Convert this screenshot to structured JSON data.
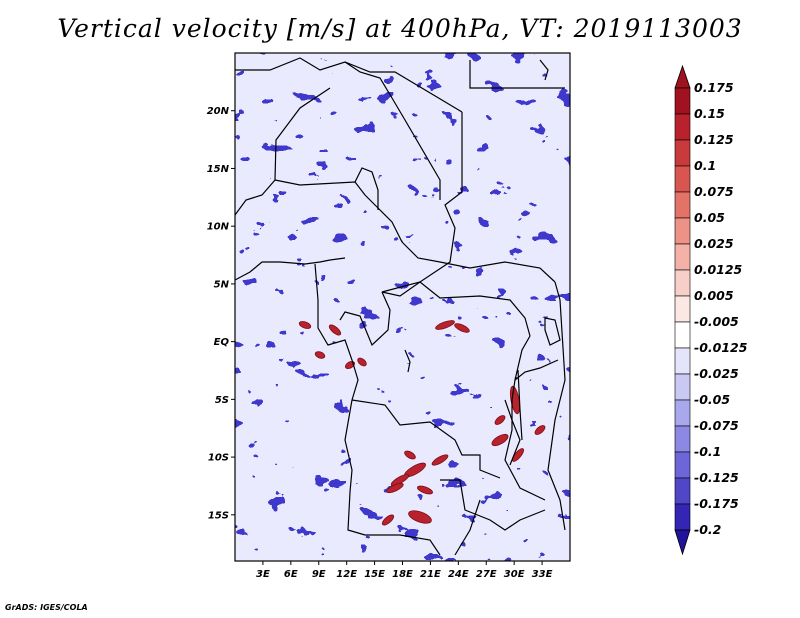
{
  "title": "Vertical velocity [m/s] at 400hPa, VT: 2019113003",
  "credit": "GrADS: IGES/COLA",
  "map": {
    "lon_range": [
      0,
      36
    ],
    "lat_range": [
      -19,
      25
    ],
    "lat_labels": [
      {
        "value": 20,
        "text": "20N"
      },
      {
        "value": 15,
        "text": "15N"
      },
      {
        "value": 10,
        "text": "10N"
      },
      {
        "value": 5,
        "text": "5N"
      },
      {
        "value": 0,
        "text": "EQ"
      },
      {
        "value": -5,
        "text": "5S"
      },
      {
        "value": -10,
        "text": "10S"
      },
      {
        "value": -15,
        "text": "15S"
      }
    ],
    "lon_labels": [
      {
        "value": 3,
        "text": "3E"
      },
      {
        "value": 6,
        "text": "6E"
      },
      {
        "value": 9,
        "text": "9E"
      },
      {
        "value": 12,
        "text": "12E"
      },
      {
        "value": 15,
        "text": "15E"
      },
      {
        "value": 18,
        "text": "18E"
      },
      {
        "value": 21,
        "text": "21E"
      },
      {
        "value": 24,
        "text": "24E"
      },
      {
        "value": 27,
        "text": "27E"
      },
      {
        "value": 30,
        "text": "30E"
      },
      {
        "value": 33,
        "text": "33E"
      }
    ]
  },
  "colorbar": {
    "levels": [
      {
        "label": "0.175",
        "color": "#a11220"
      },
      {
        "label": "0.15",
        "color": "#b8222c"
      },
      {
        "label": "0.125",
        "color": "#c93a3c"
      },
      {
        "label": "0.1",
        "color": "#d95550"
      },
      {
        "label": "0.075",
        "color": "#e37367"
      },
      {
        "label": "0.05",
        "color": "#ec9286"
      },
      {
        "label": "0.025",
        "color": "#f3b1a8"
      },
      {
        "label": "0.0125",
        "color": "#f8cfc8"
      },
      {
        "label": "0.005",
        "color": "#fbe7e3"
      },
      {
        "label": "-0.005",
        "color": "#ffffff"
      },
      {
        "label": "-0.0125",
        "color": "#e4e4fa"
      },
      {
        "label": "-0.025",
        "color": "#c9c9f3"
      },
      {
        "label": "-0.05",
        "color": "#a9a8ec"
      },
      {
        "label": "-0.075",
        "color": "#8c88e3"
      },
      {
        "label": "-0.1",
        "color": "#6d66d8"
      },
      {
        "label": "-0.125",
        "color": "#5046c8"
      },
      {
        "label": "-0.175",
        "color": "#3425b4"
      },
      {
        "label": "-0.2",
        "color": "#22139c"
      }
    ],
    "top_color": "#a11220",
    "bottom_color": "#22139c"
  }
}
